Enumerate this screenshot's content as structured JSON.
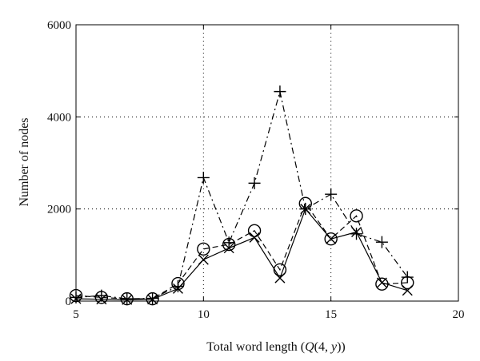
{
  "chart_data": {
    "type": "line",
    "title": "",
    "xlabel_parts": [
      "Total word length (",
      "Q",
      "(4, ",
      "y",
      "))"
    ],
    "ylabel": "Number of nodes",
    "xlim": [
      5,
      20
    ],
    "ylim": [
      0,
      6000
    ],
    "xticks": [
      5,
      10,
      15,
      20
    ],
    "yticks": [
      0,
      2000,
      4000,
      6000
    ],
    "xtick_labels": [
      "5",
      "10",
      "15",
      "20"
    ],
    "ytick_labels": [
      "0",
      "2000",
      "4000",
      "6000"
    ],
    "grid": true,
    "x": [
      5,
      6,
      7,
      8,
      9,
      10,
      11,
      12,
      13,
      14,
      15,
      16,
      17,
      18
    ],
    "series": [
      {
        "style": "solid",
        "marker": "x",
        "values": [
          50,
          40,
          30,
          40,
          270,
          900,
          1150,
          1380,
          500,
          2000,
          1350,
          1500,
          400,
          230
        ]
      },
      {
        "style": "dashed",
        "marker": "o",
        "values": [
          120,
          80,
          50,
          50,
          380,
          1130,
          1230,
          1530,
          680,
          2120,
          1350,
          1850,
          370,
          400
        ]
      },
      {
        "style": "dashdot",
        "marker": "+",
        "values": [
          80,
          120,
          50,
          60,
          320,
          2680,
          1270,
          2560,
          4550,
          2000,
          2320,
          1460,
          1280,
          520
        ]
      }
    ]
  }
}
